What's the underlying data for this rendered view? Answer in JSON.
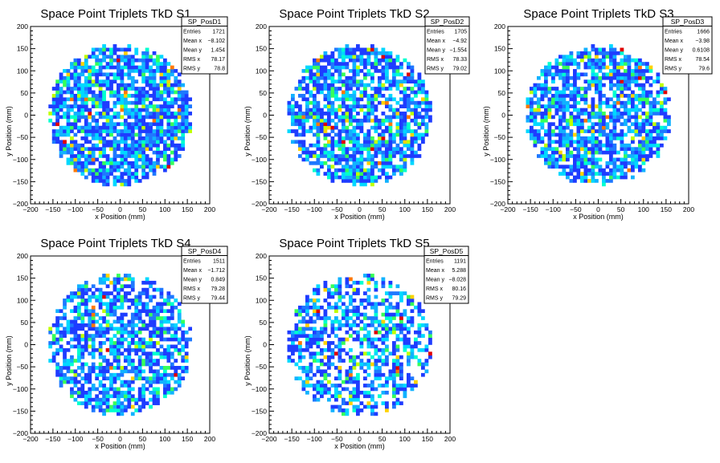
{
  "colors": {
    "palette": [
      "#1e3cff",
      "#1e78ff",
      "#11b2ff",
      "#00d8ff",
      "#00ffd0",
      "#36ff5a",
      "#bfff00",
      "#ffd200",
      "#ff7800",
      "#e00000"
    ],
    "frame": "#000000",
    "background": "#ffffff"
  },
  "chart_data": [
    {
      "type": "heatmap",
      "title": "Space Point Triplets TkD S1",
      "xlabel": "x Position (mm)",
      "ylabel": "y Position (mm)",
      "xlim": [
        -200,
        200
      ],
      "ylim": [
        -200,
        200
      ],
      "xticks": [
        "−200",
        "−150",
        "−100",
        "−50",
        "0",
        "50",
        "100",
        "150",
        "200"
      ],
      "yticks": [
        "−200",
        "−150",
        "−100",
        "−50",
        "0",
        "50",
        "100",
        "150",
        "200"
      ],
      "data_region": {
        "shape": "disk",
        "center": [
          0,
          0
        ],
        "radius": 160
      },
      "stats": {
        "name": "SP_PosD1",
        "rows": [
          {
            "label": "Entries",
            "value": "1721"
          },
          {
            "label": "Mean x",
            "value": "−8.102"
          },
          {
            "label": "Mean y",
            "value": "1.454"
          },
          {
            "label": "RMS x",
            "value": "78.17"
          },
          {
            "label": "RMS y",
            "value": "78.8"
          }
        ]
      }
    },
    {
      "type": "heatmap",
      "title": "Space Point Triplets TkD S2",
      "xlabel": "x Position (mm)",
      "ylabel": "y Position (mm)",
      "xlim": [
        -200,
        200
      ],
      "ylim": [
        -200,
        200
      ],
      "xticks": [
        "−200",
        "−150",
        "−100",
        "−50",
        "0",
        "50",
        "100",
        "150",
        "200"
      ],
      "yticks": [
        "−200",
        "−150",
        "−100",
        "−50",
        "0",
        "50",
        "100",
        "150",
        "200"
      ],
      "data_region": {
        "shape": "disk",
        "center": [
          0,
          0
        ],
        "radius": 160
      },
      "stats": {
        "name": "SP_PosD2",
        "rows": [
          {
            "label": "Entries",
            "value": "1705"
          },
          {
            "label": "Mean x",
            "value": "−4.92"
          },
          {
            "label": "Mean y",
            "value": "−1.554"
          },
          {
            "label": "RMS x",
            "value": "78.33"
          },
          {
            "label": "RMS y",
            "value": "79.02"
          }
        ]
      }
    },
    {
      "type": "heatmap",
      "title": "Space Point Triplets TkD S3",
      "xlabel": "x Position (mm)",
      "ylabel": "y Position (mm)",
      "xlim": [
        -200,
        200
      ],
      "ylim": [
        -200,
        200
      ],
      "xticks": [
        "−200",
        "−150",
        "−100",
        "−50",
        "0",
        "50",
        "100",
        "150",
        "200"
      ],
      "yticks": [
        "−200",
        "−150",
        "−100",
        "−50",
        "0",
        "50",
        "100",
        "150",
        "200"
      ],
      "data_region": {
        "shape": "disk",
        "center": [
          0,
          0
        ],
        "radius": 160
      },
      "stats": {
        "name": "SP_PosD3",
        "rows": [
          {
            "label": "Entries",
            "value": "1666"
          },
          {
            "label": "Mean x",
            "value": "−3.98"
          },
          {
            "label": "Mean y",
            "value": "0.6108"
          },
          {
            "label": "RMS x",
            "value": "78.54"
          },
          {
            "label": "RMS y",
            "value": "79.6"
          }
        ]
      }
    },
    {
      "type": "heatmap",
      "title": "Space Point Triplets TkD S4",
      "xlabel": "x Position (mm)",
      "ylabel": "y Position (mm)",
      "xlim": [
        -200,
        200
      ],
      "ylim": [
        -200,
        200
      ],
      "xticks": [
        "−200",
        "−150",
        "−100",
        "−50",
        "0",
        "50",
        "100",
        "150",
        "200"
      ],
      "yticks": [
        "−200",
        "−150",
        "−100",
        "−50",
        "0",
        "50",
        "100",
        "150",
        "200"
      ],
      "data_region": {
        "shape": "disk",
        "center": [
          0,
          0
        ],
        "radius": 160
      },
      "stats": {
        "name": "SP_PosD4",
        "rows": [
          {
            "label": "Entries",
            "value": "1511"
          },
          {
            "label": "Mean x",
            "value": "−1.712"
          },
          {
            "label": "Mean y",
            "value": "0.849"
          },
          {
            "label": "RMS x",
            "value": "79.28"
          },
          {
            "label": "RMS y",
            "value": "79.44"
          }
        ]
      }
    },
    {
      "type": "heatmap",
      "title": "Space Point Triplets TkD S5",
      "xlabel": "x Position (mm)",
      "ylabel": "y Position (mm)",
      "xlim": [
        -200,
        200
      ],
      "ylim": [
        -200,
        200
      ],
      "xticks": [
        "−200",
        "−150",
        "−100",
        "−50",
        "0",
        "50",
        "100",
        "150",
        "200"
      ],
      "yticks": [
        "−200",
        "−150",
        "−100",
        "−50",
        "0",
        "50",
        "100",
        "150",
        "200"
      ],
      "data_region": {
        "shape": "disk",
        "center": [
          0,
          0
        ],
        "radius": 160
      },
      "stats": {
        "name": "SP_PosD5",
        "rows": [
          {
            "label": "Entries",
            "value": "1191"
          },
          {
            "label": "Mean x",
            "value": "5.288"
          },
          {
            "label": "Mean y",
            "value": "−8.028"
          },
          {
            "label": "RMS x",
            "value": "80.16"
          },
          {
            "label": "RMS y",
            "value": "79.29"
          }
        ]
      }
    }
  ]
}
